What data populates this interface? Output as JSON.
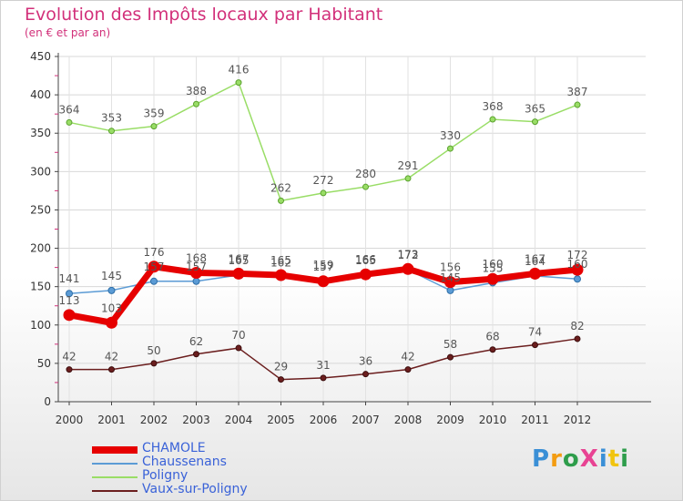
{
  "chart_data": {
    "type": "line",
    "title": "Evolution des Impôts locaux par Habitant",
    "subtitle": "(en € et par an)",
    "xlabel": "",
    "ylabel": "",
    "categories": [
      "2000",
      "2001",
      "2002",
      "2003",
      "2004",
      "2005",
      "2006",
      "2007",
      "2008",
      "2009",
      "2010",
      "2011",
      "2012"
    ],
    "ylim": [
      0,
      450
    ],
    "yticks": [
      0,
      50,
      100,
      150,
      200,
      250,
      300,
      350,
      400,
      450
    ],
    "grid": true,
    "legend_position": "bottom-left",
    "series": [
      {
        "name": "CHAMOLE",
        "color": "#e60000",
        "values": [
          113,
          103,
          176,
          168,
          167,
          165,
          157,
          166,
          173,
          156,
          160,
          167,
          172
        ],
        "labels": [
          "113",
          "103",
          "176",
          "168",
          "167",
          "165",
          "157",
          "166",
          "173",
          "156",
          "160",
          "167",
          "172"
        ]
      },
      {
        "name": "Chaussenans",
        "color": "#5b9bd5",
        "values": [
          141,
          145,
          157,
          157,
          165,
          162,
          159,
          165,
          172,
          145,
          155,
          164,
          160
        ],
        "labels": [
          "141",
          "145",
          "157",
          "157",
          "165",
          "162",
          "159",
          "165",
          "172",
          "145",
          "155",
          "164",
          "160"
        ]
      },
      {
        "name": "Poligny",
        "color": "#99dd66",
        "values": [
          364,
          353,
          359,
          388,
          416,
          262,
          272,
          280,
          291,
          330,
          368,
          365,
          387
        ],
        "labels": [
          "364",
          "353",
          "359",
          "388",
          "416",
          "262",
          "272",
          "280",
          "291",
          "330",
          "368",
          "365",
          "387"
        ]
      },
      {
        "name": "Vaux-sur-Poligny",
        "color": "#6b1e1e",
        "values": [
          42,
          42,
          50,
          62,
          70,
          29,
          31,
          36,
          42,
          58,
          68,
          74,
          82
        ],
        "labels": [
          "42",
          "42",
          "50",
          "62",
          "70",
          "29",
          "31",
          "36",
          "42",
          "58",
          "68",
          "74",
          "82"
        ]
      }
    ]
  },
  "branding": {
    "logo_text": "ProXiti",
    "logo_letters": [
      {
        "ch": "P",
        "color": "#3a8fd6"
      },
      {
        "ch": "r",
        "color": "#f39c12"
      },
      {
        "ch": "o",
        "color": "#2e9d4b"
      },
      {
        "ch": "X",
        "color": "#e84393"
      },
      {
        "ch": "i",
        "color": "#3a8fd6"
      },
      {
        "ch": "t",
        "color": "#f1c40f"
      },
      {
        "ch": "i",
        "color": "#2e9d4b"
      }
    ]
  }
}
